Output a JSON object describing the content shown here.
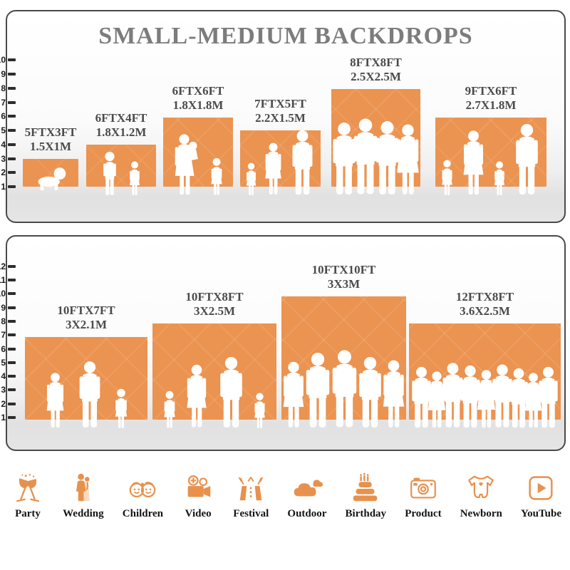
{
  "title": "SMALL-MEDIUM BACKDROPS",
  "colors": {
    "backdrop_orange": "#EB9350",
    "icon_orange": "#E8914D",
    "title_gray": "#7C7C7C",
    "label_gray": "#4B4B4B",
    "panel_border": "#4A4A4A"
  },
  "panels": [
    {
      "name": "small-medium",
      "ruler": [
        "10",
        "9",
        "8",
        "7",
        "6",
        "5",
        "4",
        "3",
        "2",
        "1"
      ],
      "items": [
        {
          "size_ft": "5FTX3FT",
          "size_m": "1.5X1M",
          "ft_w": 5,
          "ft_h": 3,
          "figures": [
            "crawling-baby"
          ]
        },
        {
          "size_ft": "6FTX4FT",
          "size_m": "1.8X1.2M",
          "ft_w": 6,
          "ft_h": 4,
          "figures": [
            "boy",
            "girl"
          ]
        },
        {
          "size_ft": "6FTX6FT",
          "size_m": "1.8X1.8M",
          "ft_w": 6,
          "ft_h": 6,
          "figures": [
            "woman-holding-child",
            "girl"
          ]
        },
        {
          "size_ft": "7FTX5FT",
          "size_m": "2.2X1.5M",
          "ft_w": 7,
          "ft_h": 5,
          "figures": [
            "girl",
            "woman",
            "man"
          ]
        },
        {
          "size_ft": "8FTX8FT",
          "size_m": "2.5X2.5M",
          "ft_w": 8,
          "ft_h": 8,
          "figures": [
            "man",
            "man",
            "man",
            "woman"
          ]
        },
        {
          "size_ft": "9FTX6FT",
          "size_m": "2.7X1.8M",
          "ft_w": 9,
          "ft_h": 6,
          "figures": [
            "girl",
            "woman",
            "girl",
            "man"
          ]
        }
      ]
    },
    {
      "name": "medium-large",
      "ruler": [
        "12",
        "11",
        "10",
        "9",
        "8",
        "7",
        "6",
        "5",
        "4",
        "3",
        "2",
        "1"
      ],
      "items": [
        {
          "size_ft": "10FTX7FT",
          "size_m": "3X2.1M",
          "ft_w": 10,
          "ft_h": 7,
          "figures": [
            "woman",
            "man",
            "girl"
          ]
        },
        {
          "size_ft": "10FTX8FT",
          "size_m": "3X2.5M",
          "ft_w": 10,
          "ft_h": 8,
          "figures": [
            "girl",
            "woman",
            "man",
            "girl"
          ]
        },
        {
          "size_ft": "10FTX10FT",
          "size_m": "3X3M",
          "ft_w": 10,
          "ft_h": 10,
          "figures": [
            "woman",
            "man",
            "man",
            "man",
            "woman"
          ]
        },
        {
          "size_ft": "12FTX8FT",
          "size_m": "3.6X2.5M",
          "ft_w": 12,
          "ft_h": 8,
          "figures": [
            "man",
            "woman",
            "man",
            "man",
            "woman",
            "man",
            "man",
            "woman",
            "man"
          ]
        }
      ]
    }
  ],
  "categories": [
    {
      "label": "Party",
      "icon": "party-icon"
    },
    {
      "label": "Wedding",
      "icon": "wedding-icon"
    },
    {
      "label": "Children",
      "icon": "children-icon"
    },
    {
      "label": "Video",
      "icon": "video-icon"
    },
    {
      "label": "Festival",
      "icon": "festival-icon"
    },
    {
      "label": "Outdoor",
      "icon": "outdoor-icon"
    },
    {
      "label": "Birthday",
      "icon": "birthday-icon"
    },
    {
      "label": "Product",
      "icon": "product-icon"
    },
    {
      "label": "Newborn",
      "icon": "newborn-icon"
    },
    {
      "label": "YouTube",
      "icon": "youtube-icon"
    }
  ]
}
